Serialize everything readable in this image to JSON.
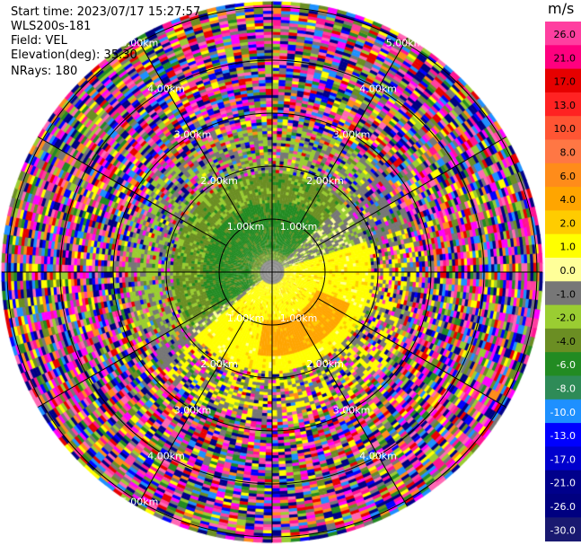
{
  "header": {
    "start_time": "Start time: 2023/07/17 15:27:57",
    "instrument": "WLS200s-181",
    "field": "Field: VEL",
    "elevation": "Elevation(deg): 35.30",
    "nrays": "NRays: 180"
  },
  "chart_data": {
    "type": "heatmap",
    "projection": "polar PPI",
    "range_ring_labels": [
      "1.00km",
      "2.00km",
      "3.00km",
      "4.00km",
      "5.00km"
    ],
    "range_rings_km": [
      1,
      2,
      3,
      4,
      5
    ],
    "max_range_km": 5.1,
    "spokes_deg": [
      0,
      30,
      60,
      90,
      120,
      150,
      180,
      210,
      240,
      270,
      300,
      330
    ],
    "colorbar": {
      "unit": "m/s",
      "tick_labels": [
        "26.0",
        "21.0",
        "17.0",
        "13.0",
        "10.0",
        "8.0",
        "6.0",
        "4.0",
        "2.0",
        "1.0",
        "0.0",
        "-1.0",
        "-2.0",
        "-4.0",
        "-6.0",
        "-8.0",
        "-10.0",
        "-13.0",
        "-17.0",
        "-21.0",
        "-26.0",
        "-30.0"
      ],
      "colors": [
        "#ff3fa0",
        "#ff007f",
        "#e60000",
        "#ff2222",
        "#ff5533",
        "#ff7744",
        "#ff8c1a",
        "#ffa500",
        "#ffcc00",
        "#ffff00",
        "#ffff99",
        "#777777",
        "#9acd32",
        "#6b8e23",
        "#228b22",
        "#2e8b57",
        "#1e90ff",
        "#0000ff",
        "#0000cd",
        "#00008b",
        "#000080",
        "#191970"
      ]
    },
    "field_zones": [
      {
        "r_km": [
          0.0,
          1.9
        ],
        "dominant": "-6.0 to -2.0",
        "sector": "northwest",
        "note": "near-range negative velocities"
      },
      {
        "r_km": [
          0.0,
          1.9
        ],
        "dominant": "2.0 to 6.0",
        "sector": "southeast",
        "note": "near-range positive velocities"
      },
      {
        "r_km": [
          1.9,
          2.8
        ],
        "dominant": "mixed",
        "note": "transition"
      },
      {
        "r_km": [
          2.8,
          5.1
        ],
        "dominant": "noise",
        "note": "random multicolor speckle"
      }
    ]
  }
}
